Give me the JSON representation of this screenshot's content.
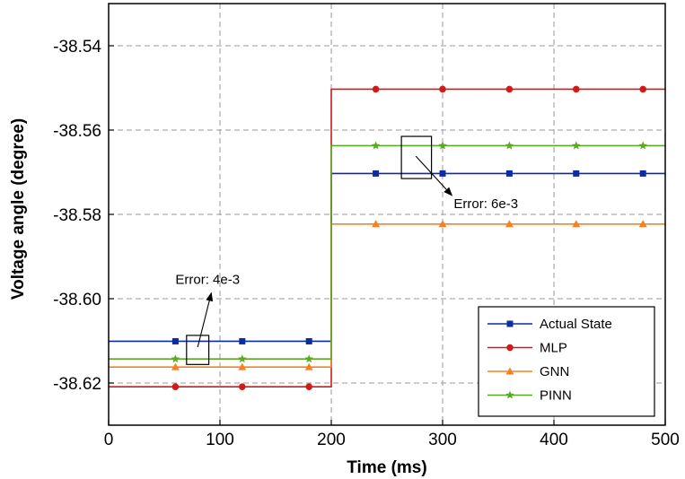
{
  "chart_data": {
    "type": "line",
    "xlabel": "Time (ms)",
    "ylabel": "Voltage angle (degree)",
    "xlim": [
      0,
      500
    ],
    "ylim": [
      -38.63,
      -38.53
    ],
    "xticks": [
      "0",
      "100",
      "200",
      "300",
      "400",
      "500"
    ],
    "yticks": [
      "-38.54",
      "-38.56",
      "-38.58",
      "-38.60",
      "-38.62"
    ],
    "xtick_values": [
      0,
      100,
      200,
      300,
      400,
      500
    ],
    "ytick_values": [
      -38.54,
      -38.56,
      -38.58,
      -38.6,
      -38.62
    ],
    "grid": true,
    "legend_position": "bottom-right",
    "series": [
      {
        "name": "Actual State",
        "color": "#0d2ca0",
        "marker": "square",
        "x": [
          0,
          200,
          200,
          500
        ],
        "y": [
          -38.6101,
          -38.6101,
          -38.5703,
          -38.5703
        ],
        "marker_x": [
          60,
          120,
          180,
          240,
          300,
          360,
          420,
          480
        ]
      },
      {
        "name": "MLP",
        "color": "#d11a1a",
        "marker": "circle",
        "x": [
          0,
          200,
          200,
          500
        ],
        "y": [
          -38.6209,
          -38.6209,
          -38.5503,
          -38.5503
        ],
        "marker_x": [
          60,
          120,
          180,
          240,
          300,
          360,
          420,
          480
        ]
      },
      {
        "name": "GNN",
        "color": "#f58220",
        "marker": "triangle",
        "x": [
          0,
          200,
          200,
          500
        ],
        "y": [
          -38.6162,
          -38.6162,
          -38.5823,
          -38.5823
        ],
        "marker_x": [
          60,
          120,
          180,
          240,
          300,
          360,
          420,
          480
        ]
      },
      {
        "name": "PINN",
        "color": "#5aab22",
        "marker": "star",
        "x": [
          0,
          200,
          200,
          500
        ],
        "y": [
          -38.6143,
          -38.6143,
          -38.5637,
          -38.5637
        ],
        "marker_x": [
          60,
          120,
          180,
          240,
          300,
          360,
          420,
          480
        ]
      }
    ],
    "annotations": [
      {
        "text": "Error: 4e-3",
        "box_x": [
          70,
          90
        ],
        "box_y": [
          -38.6087,
          -38.6156
        ],
        "label_x": 60,
        "label_y": -38.5965,
        "arrow_to_x": 80,
        "arrow_to_y": -38.6115
      },
      {
        "text": "Error: 6e-3",
        "box_x": [
          263,
          290
        ],
        "box_y": [
          -38.5615,
          -38.5715
        ],
        "label_x": 310,
        "label_y": -38.5785,
        "arrow_to_x": 276,
        "arrow_to_y": -38.5662
      }
    ]
  }
}
